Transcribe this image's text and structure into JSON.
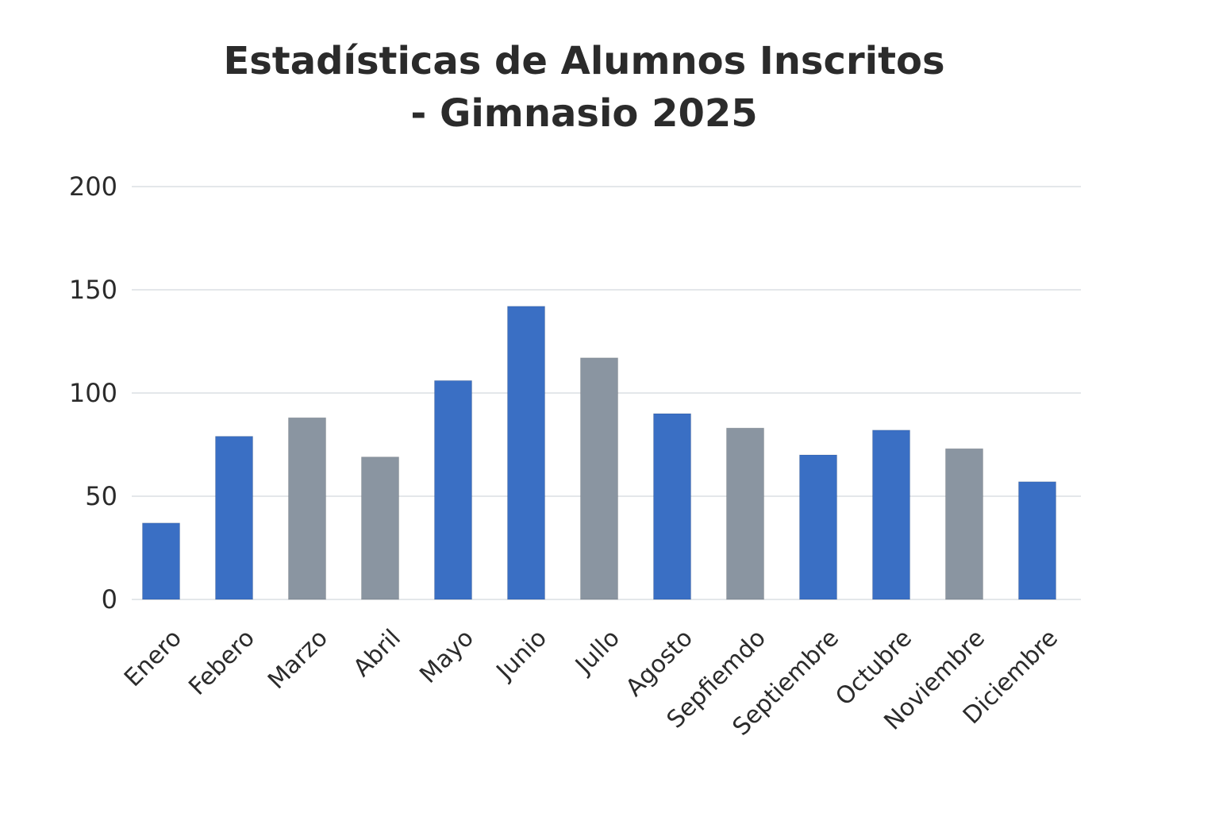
{
  "chart_data": {
    "type": "bar",
    "title_line1": "Estadísticas de Alumnos Inscritos",
    "title_line2": "- Gimnasio 2025",
    "xlabel": "",
    "ylabel": "",
    "ylim": [
      0,
      200
    ],
    "yticks": [
      0,
      50,
      100,
      150,
      200
    ],
    "grid": true,
    "legend": "none",
    "categories": [
      "Enero",
      "Febero",
      "Marzo",
      "Abril",
      "Mayo",
      "Junio",
      "Jullo",
      "Agosto",
      "Sepfiemdo",
      "Septiembre",
      "Octubre",
      "Noviembre",
      "Diciembre"
    ],
    "values": [
      37,
      79,
      88,
      69,
      106,
      142,
      117,
      90,
      83,
      70,
      82,
      73,
      57
    ],
    "bar_colors": [
      "#3a6fc4",
      "#3a6fc4",
      "#8a95a1",
      "#8a95a1",
      "#3a6fc4",
      "#3a6fc4",
      "#8a95a1",
      "#3a6fc4",
      "#8a95a1",
      "#3a6fc4",
      "#3a6fc4",
      "#8a95a1",
      "#3a6fc4"
    ]
  }
}
